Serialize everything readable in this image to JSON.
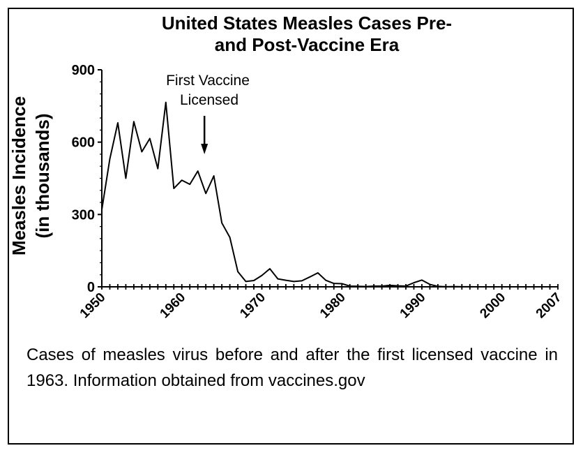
{
  "chart_data": {
    "type": "line",
    "title_line1": "United States Measles Cases Pre-",
    "title_line2": "and Post-Vaccine Era",
    "ylabel_line1": "Measles Incidence",
    "ylabel_line2": "(in thousands)",
    "xlabel": "",
    "xlim": [
      1950,
      2007
    ],
    "ylim": [
      0,
      900
    ],
    "x_ticks": [
      "1950",
      "1960",
      "1970",
      "1980",
      "1990",
      "2000",
      "2007"
    ],
    "y_ticks": [
      "0",
      "300",
      "600",
      "900"
    ],
    "annotation_line1": "First Vaccine",
    "annotation_line2": "Licensed",
    "annotation_x": 1963,
    "series": [
      {
        "x": [
          1950,
          1951,
          1952,
          1953,
          1954,
          1955,
          1956,
          1957,
          1958,
          1959,
          1960,
          1961,
          1962,
          1963,
          1964,
          1965,
          1966,
          1967,
          1968,
          1969,
          1970,
          1971,
          1972,
          1973,
          1974,
          1975,
          1976,
          1977,
          1978,
          1979,
          1980,
          1981,
          1982,
          1983,
          1984,
          1985,
          1986,
          1987,
          1988,
          1989,
          1990,
          1991,
          1992,
          1993,
          1994,
          1995,
          1996,
          1997,
          1998,
          1999,
          2000,
          2001,
          2002,
          2003,
          2004,
          2005,
          2006,
          2007
        ],
        "y": [
          320,
          530,
          680,
          450,
          685,
          560,
          615,
          490,
          765,
          408,
          442,
          425,
          480,
          387,
          460,
          265,
          205,
          63,
          22,
          26,
          47,
          75,
          33,
          27,
          22,
          25,
          41,
          58,
          27,
          14,
          13,
          3,
          2,
          1,
          3,
          3,
          6,
          4,
          3,
          17,
          28,
          10,
          2,
          0.3,
          1,
          0.3,
          0.5,
          0.1,
          0.1,
          0.1,
          0.1,
          0.1,
          0,
          0.1,
          0,
          0.1,
          0.1,
          0
        ]
      }
    ]
  },
  "caption": "Cases of measles virus before and after the first licensed vaccine in 1963. Information obtained from vaccines.gov"
}
